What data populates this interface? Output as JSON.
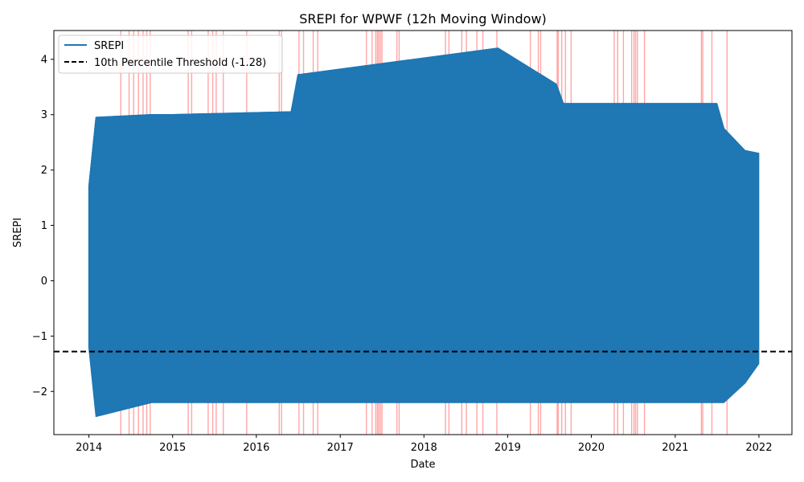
{
  "chart_data": {
    "type": "line",
    "title": "SREPI for WPWF (12h Moving Window)",
    "xlabel": "Date",
    "ylabel": "SREPI",
    "xlim": [
      "2013-08-01",
      "2022-05-25"
    ],
    "ylim": [
      -2.78,
      4.52
    ],
    "x_ticks": [
      "2014",
      "2015",
      "2016",
      "2017",
      "2018",
      "2019",
      "2020",
      "2021",
      "2022"
    ],
    "y_ticks": [
      -2,
      -1,
      0,
      1,
      2,
      3,
      4
    ],
    "grid": false,
    "legend": {
      "placement": "upper left",
      "entries": [
        {
          "label": "SREPI",
          "style": "solid",
          "color": "#1f77b4"
        },
        {
          "label": "10th Percentile Threshold (-1.28)",
          "style": "dashed",
          "color": "#000000"
        }
      ]
    },
    "series": [
      {
        "name": "SREPI",
        "color": "#1f77b4",
        "x_range": [
          "2014-01-01",
          "2021-12-31"
        ],
        "envelope": [
          {
            "x": "2014-01-01",
            "min": -1.2,
            "max": 1.7
          },
          {
            "x": "2014-02-01",
            "min": -2.45,
            "max": 2.95
          },
          {
            "x": "2014-10-01",
            "min": -2.2,
            "max": 3.0
          },
          {
            "x": "2015-01-01",
            "min": -2.2,
            "max": 3.0
          },
          {
            "x": "2016-06-01",
            "min": -2.2,
            "max": 3.05
          },
          {
            "x": "2016-07-01",
            "min": -2.2,
            "max": 3.72
          },
          {
            "x": "2018-11-20",
            "min": -2.2,
            "max": 4.2
          },
          {
            "x": "2019-08-01",
            "min": -2.2,
            "max": 3.55
          },
          {
            "x": "2019-09-01",
            "min": -2.2,
            "max": 3.2
          },
          {
            "x": "2021-07-01",
            "min": -2.2,
            "max": 3.2
          },
          {
            "x": "2021-08-01",
            "min": -2.2,
            "max": 2.75
          },
          {
            "x": "2021-11-01",
            "min": -1.85,
            "max": 2.35
          },
          {
            "x": "2021-12-31",
            "min": -1.5,
            "max": 2.3
          }
        ]
      },
      {
        "name": "10th Percentile Threshold (-1.28)",
        "type": "hline",
        "y": -1.28,
        "color": "#000000",
        "style": "dashed"
      }
    ],
    "highlight_periods": {
      "color": "#ff0000",
      "dates": [
        "2014-05-20",
        "2014-06-25",
        "2014-07-15",
        "2014-08-05",
        "2014-08-25",
        "2014-09-10",
        "2014-09-25",
        "2015-03-10",
        "2015-03-25",
        "2015-06-05",
        "2015-06-25",
        "2015-07-10",
        "2015-08-10",
        "2015-11-20",
        "2016-04-10",
        "2016-04-20",
        "2016-07-05",
        "2016-07-25",
        "2016-09-05",
        "2016-09-25",
        "2017-04-25",
        "2017-05-20",
        "2017-06-05",
        "2017-06-12",
        "2017-06-18",
        "2017-06-25",
        "2017-07-02",
        "2017-09-05",
        "2017-09-15",
        "2018-04-05",
        "2018-04-20",
        "2018-06-15",
        "2018-07-05",
        "2018-08-20",
        "2018-09-15",
        "2018-11-15",
        "2019-04-10",
        "2019-05-15",
        "2019-05-25",
        "2019-08-05",
        "2019-08-10",
        "2019-08-25",
        "2019-09-10",
        "2019-10-05",
        "2020-04-10",
        "2020-04-25",
        "2020-05-20",
        "2020-06-25",
        "2020-07-05",
        "2020-07-12",
        "2020-07-20",
        "2020-08-20",
        "2021-04-25",
        "2021-05-01",
        "2021-06-10",
        "2021-08-15"
      ]
    }
  }
}
